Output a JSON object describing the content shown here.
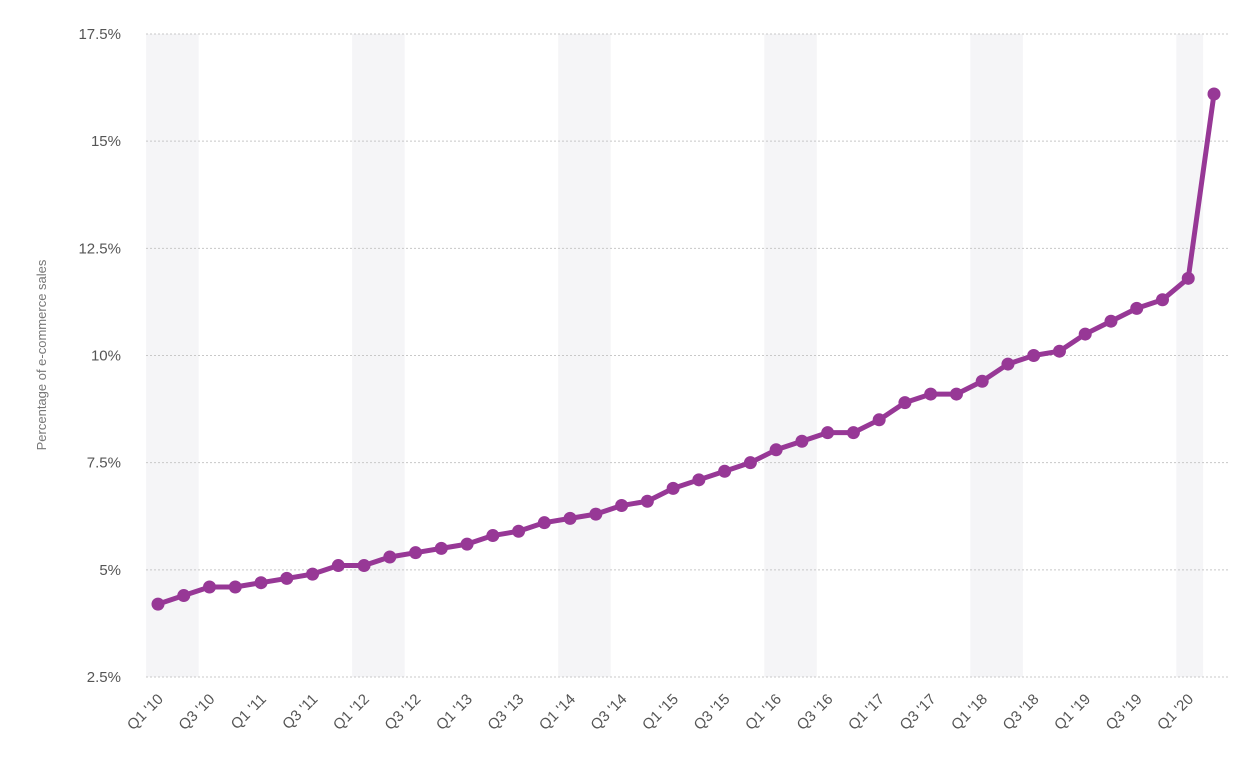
{
  "chart_data": {
    "type": "line",
    "title": "",
    "xlabel": "",
    "ylabel": "Percentage of e-commerce sales",
    "ylim": [
      2.5,
      17.5
    ],
    "yticks": [
      "2.5%",
      "5%",
      "7.5%",
      "10%",
      "12.5%",
      "15%",
      "17.5%"
    ],
    "ytick_values": [
      2.5,
      5,
      7.5,
      10,
      12.5,
      15,
      17.5
    ],
    "grid": true,
    "categories": [
      "Q1 '10",
      "Q2 '10",
      "Q3 '10",
      "Q4 '10",
      "Q1 '11",
      "Q2 '11",
      "Q3 '11",
      "Q4 '11",
      "Q1 '12",
      "Q2 '12",
      "Q3 '12",
      "Q4 '12",
      "Q1 '13",
      "Q2 '13",
      "Q3 '13",
      "Q4 '13",
      "Q1 '14",
      "Q2 '14",
      "Q3 '14",
      "Q4 '14",
      "Q1 '15",
      "Q2 '15",
      "Q3 '15",
      "Q4 '15",
      "Q1 '16",
      "Q2 '16",
      "Q3 '16",
      "Q4 '16",
      "Q1 '17",
      "Q2 '17",
      "Q3 '17",
      "Q4 '17",
      "Q1 '18",
      "Q2 '18",
      "Q3 '18",
      "Q4 '18",
      "Q1 '19",
      "Q2 '19",
      "Q3 '19",
      "Q4 '19",
      "Q1 '20",
      "Q2 '20"
    ],
    "xtick_labels": [
      "Q1 '10",
      "Q3 '10",
      "Q1 '11",
      "Q3 '11",
      "Q1 '12",
      "Q3 '12",
      "Q1 '13",
      "Q3 '13",
      "Q1 '14",
      "Q3 '14",
      "Q1 '15",
      "Q3 '15",
      "Q1 '16",
      "Q3 '16",
      "Q1 '17",
      "Q3 '17",
      "Q1 '18",
      "Q3 '18",
      "Q1 '19",
      "Q3 '19",
      "Q1 '20"
    ],
    "series": [
      {
        "values": [
          4.2,
          4.4,
          4.6,
          4.6,
          4.7,
          4.8,
          4.9,
          5.1,
          5.1,
          5.3,
          5.4,
          5.5,
          5.6,
          5.8,
          5.9,
          6.1,
          6.2,
          6.3,
          6.5,
          6.6,
          6.9,
          7.1,
          7.3,
          7.5,
          7.8,
          8.0,
          8.2,
          8.2,
          8.5,
          8.9,
          9.1,
          9.1,
          9.4,
          9.8,
          10.0,
          10.1,
          10.5,
          10.8,
          11.1,
          11.3,
          11.8,
          16.1
        ],
        "color": "#973896"
      }
    ],
    "band_color": "#f5f5f7",
    "grid_color": "#c8c8c8"
  }
}
